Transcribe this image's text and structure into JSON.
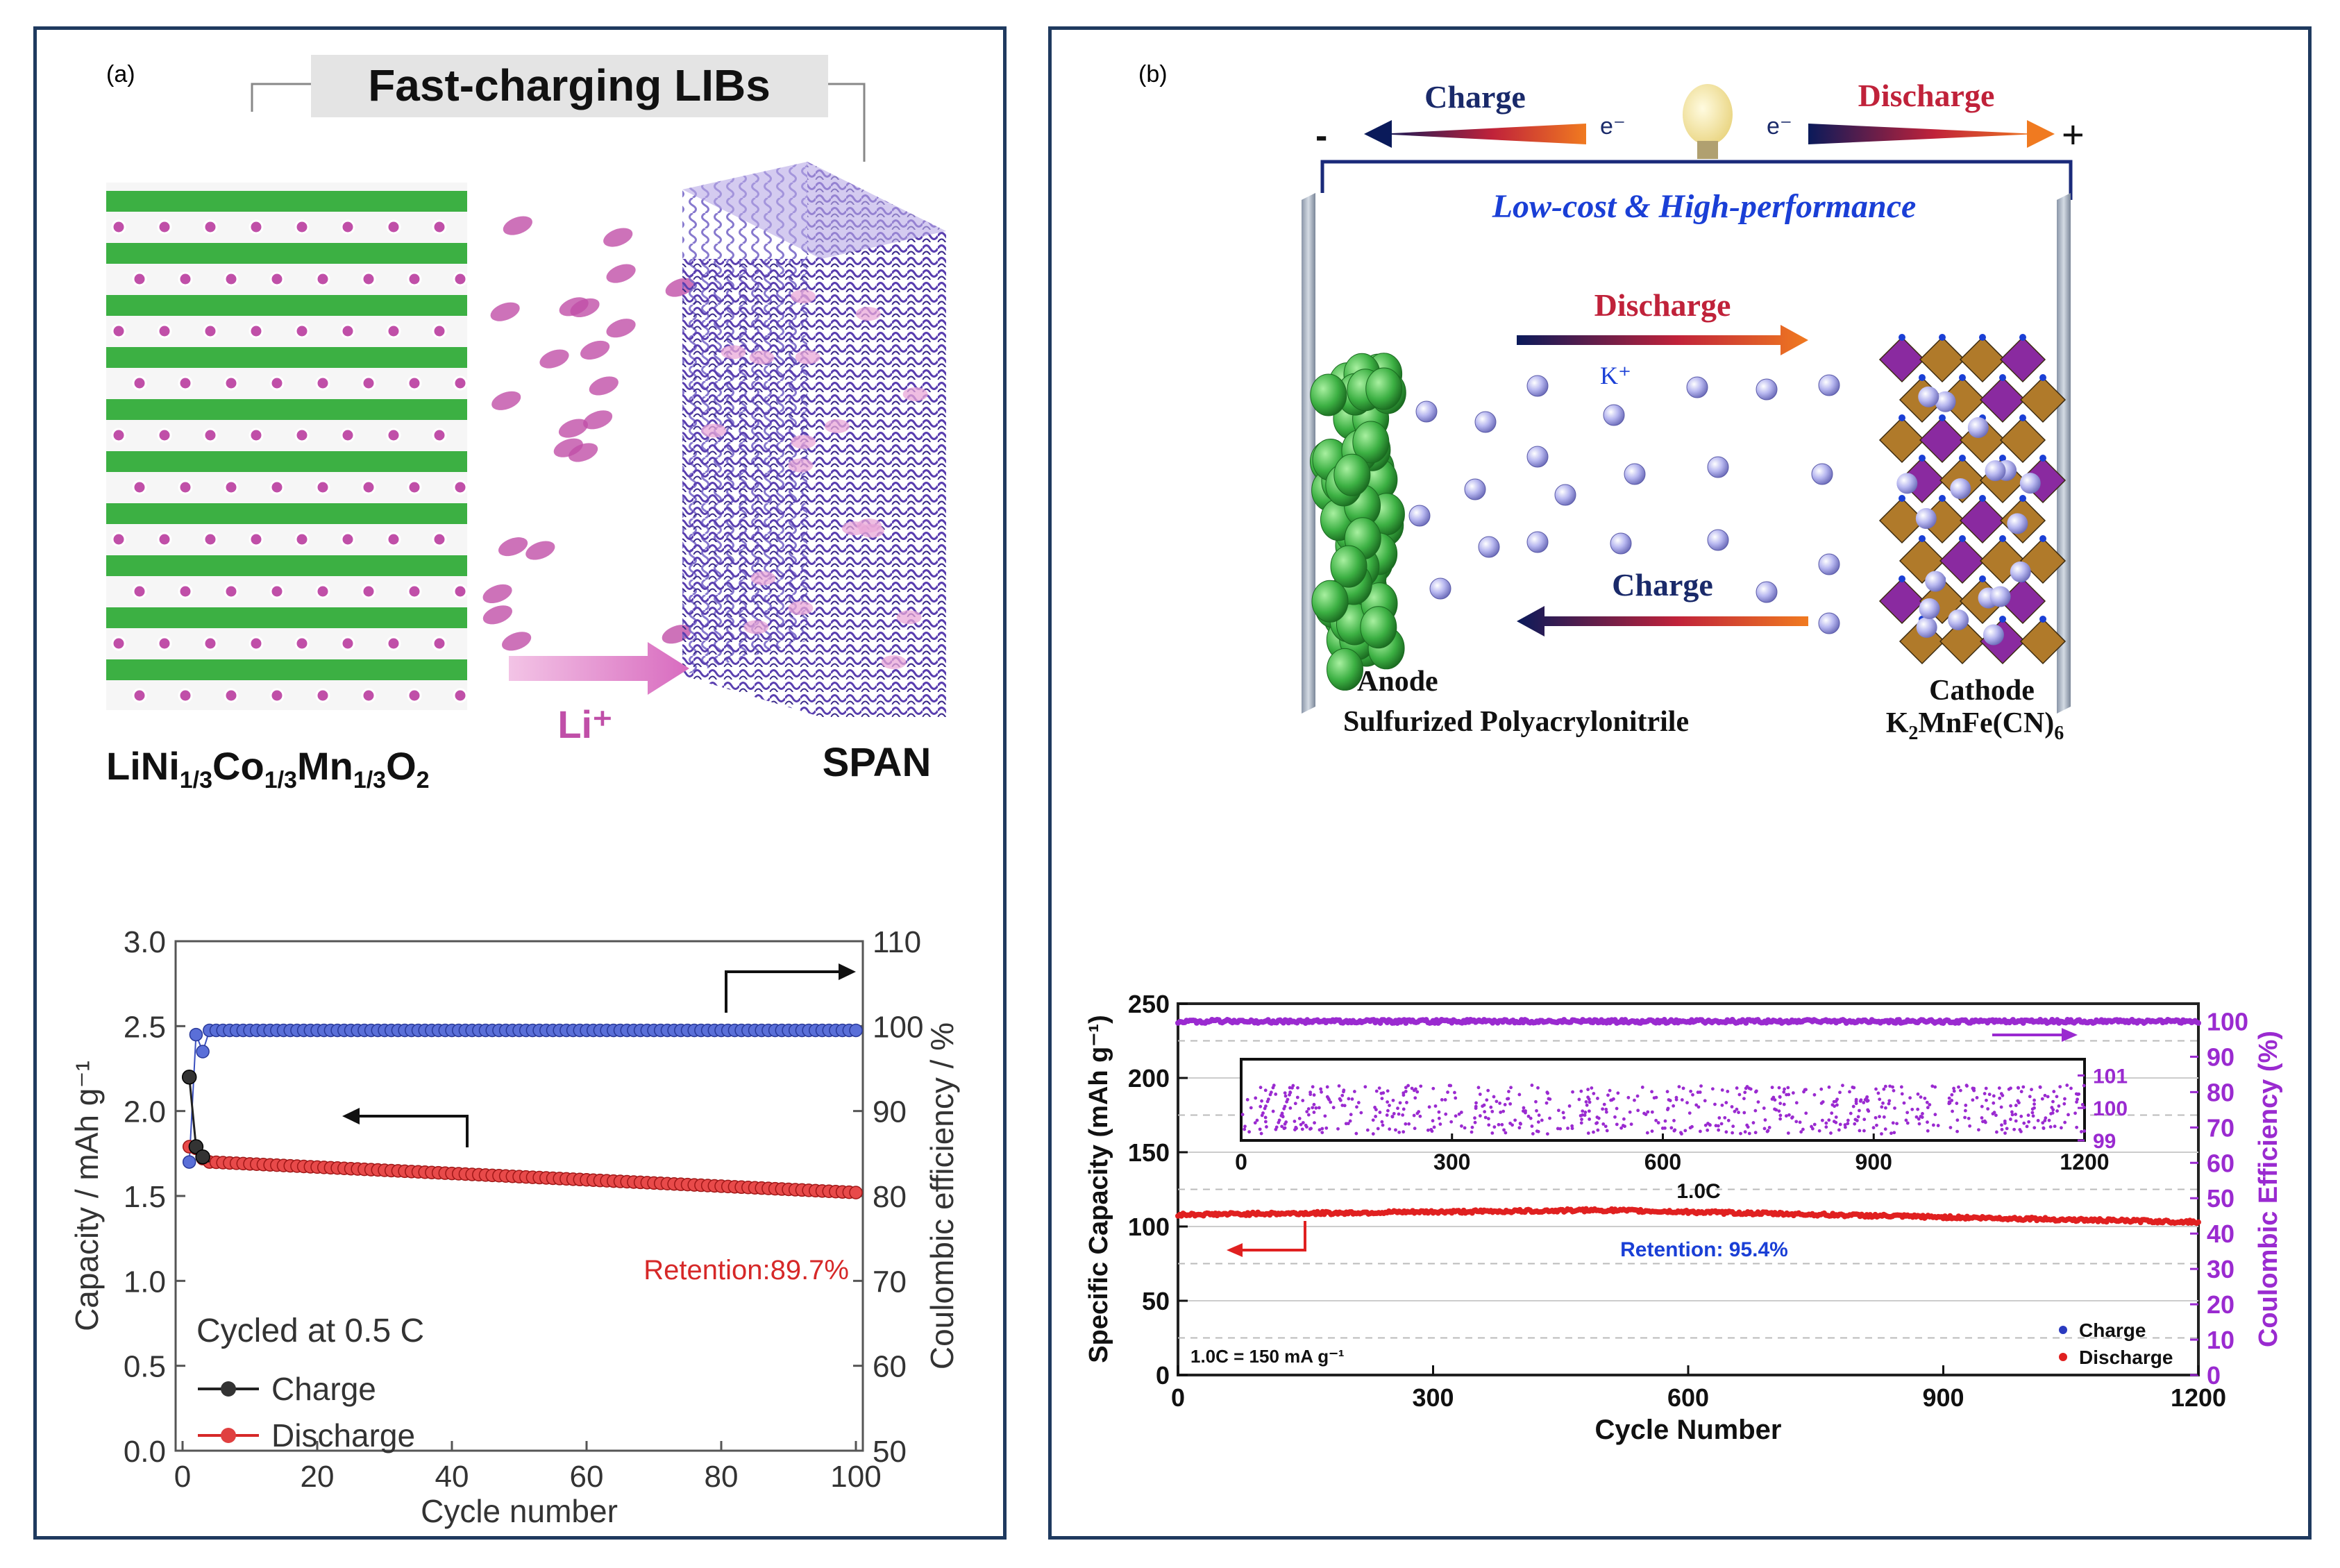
{
  "panel_a": {
    "label": "(a)",
    "schematic": {
      "title": "Fast-charging LIBs",
      "left_material": "LiNi1/3Co1/3Mn1/3O2",
      "left_material_parts": [
        "LiNi",
        "1/3",
        "Co",
        "1/3",
        "Mn",
        "1/3",
        "O",
        "2"
      ],
      "right_material": "SPAN",
      "ion": "Li⁺"
    },
    "colors": {
      "charge": "#222222",
      "discharge": "#d62828",
      "efficiency": "#3a4fbf",
      "layer": "#3cb043",
      "ion": "#c04fa8",
      "span": "#5a3fb0"
    }
  },
  "panel_b": {
    "label": "(b)",
    "schematic": {
      "top_charge": "Charge",
      "top_discharge": "Discharge",
      "electron": "e⁻",
      "minus": "-",
      "plus": "+",
      "tagline": "Low-cost & High-performance",
      "mid_discharge": "Discharge",
      "mid_charge": "Charge",
      "ion": "K⁺",
      "anode_label": "Anode",
      "anode_material": "Sulfurized Polyacrylonitrile",
      "cathode_label": "Cathode",
      "cathode_material": "K2MnFe(CN)6",
      "cathode_material_parts": [
        "K",
        "2",
        "MnFe(CN)",
        "6"
      ]
    },
    "colors": {
      "anode": "#3cb043",
      "ion": "#a8a8e8",
      "cathode_a": "#b07a2a",
      "cathode_b": "#8a2aa0",
      "tagline": "#1a3fd6",
      "discharge_text": "#c0223a",
      "charge_text": "#1a2a6a",
      "efficiency": "#9a2ad0",
      "discharge_series": "#e02020",
      "charge_series": "#2a3ac0"
    }
  },
  "chart_data": [
    {
      "id": "panel-a-chart",
      "type": "scatter",
      "x_label": "Cycle number",
      "y_label": "Capacity / mAh g⁻¹",
      "y2_label": "Coulombic efficiency / %",
      "xlim": [
        0,
        100
      ],
      "ylim": [
        0.0,
        3.0
      ],
      "y2lim": [
        50,
        110
      ],
      "x_ticks": [
        0,
        20,
        40,
        60,
        80,
        100
      ],
      "y_ticks": [
        0.0,
        0.5,
        1.0,
        1.5,
        2.0,
        2.5,
        3.0
      ],
      "y_tick_labels": [
        "0.0",
        "0.5",
        "1.0",
        "1.5",
        "2.0",
        "2.5",
        "3.0"
      ],
      "y2_ticks": [
        50,
        60,
        70,
        80,
        90,
        100,
        110
      ],
      "annotation_condition": "Cycled at 0.5 C",
      "annotation_retention": "Retention:89.7%",
      "legend": [
        "Charge",
        "Discharge"
      ],
      "series": [
        {
          "name": "Charge",
          "axis": "left",
          "points": [
            [
              1,
              2.2
            ],
            [
              2,
              1.79
            ],
            [
              3,
              1.73
            ],
            [
              4,
              1.7
            ],
            [
              100,
              1.52
            ]
          ]
        },
        {
          "name": "Discharge",
          "axis": "left",
          "points": [
            [
              1,
              1.79
            ],
            [
              2,
              1.78
            ],
            [
              3,
              1.72
            ],
            [
              4,
              1.7
            ],
            [
              100,
              1.52
            ]
          ]
        },
        {
          "name": "Coulombic efficiency",
          "axis": "right",
          "points": [
            [
              1,
              84
            ],
            [
              2,
              99
            ],
            [
              3,
              97
            ],
            [
              4,
              99.5
            ],
            [
              100,
              99.5
            ]
          ]
        }
      ]
    },
    {
      "id": "panel-b-chart",
      "type": "scatter",
      "x_label": "Cycle Number",
      "y_label": "Specific Capacity (mAh g⁻¹)",
      "y2_label": "Coulombic Efficiency (%)",
      "xlim": [
        0,
        1200
      ],
      "ylim": [
        0,
        250
      ],
      "y2lim": [
        0,
        105
      ],
      "x_ticks": [
        0,
        300,
        600,
        900,
        1200
      ],
      "y_ticks": [
        0,
        50,
        100,
        150,
        200,
        250
      ],
      "y2_ticks": [
        0,
        10,
        20,
        30,
        40,
        50,
        60,
        70,
        80,
        90,
        100
      ],
      "annotation_rate": "1.0C",
      "annotation_retention": "Retention: 95.4%",
      "annotation_definition": "1.0C = 150 mA g⁻¹",
      "legend": [
        "Charge",
        "Discharge"
      ],
      "series": [
        {
          "name": "Discharge",
          "axis": "left",
          "points": [
            [
              0,
              108
            ],
            [
              500,
              111
            ],
            [
              1100,
              104
            ],
            [
              1200,
              103
            ]
          ]
        },
        {
          "name": "Charge",
          "axis": "left",
          "points": [
            [
              0,
              108
            ],
            [
              500,
              111
            ],
            [
              1100,
              104
            ],
            [
              1200,
              103
            ]
          ]
        },
        {
          "name": "Coulombic efficiency",
          "axis": "right",
          "points": [
            [
              0,
              100
            ],
            [
              1200,
              100
            ]
          ]
        }
      ],
      "inset": {
        "xlim": [
          0,
          1200
        ],
        "ylim": [
          99,
          101.5
        ],
        "x_ticks": [
          0,
          300,
          600,
          900,
          1200
        ],
        "y_ticks": [
          99,
          100,
          101
        ]
      }
    }
  ]
}
